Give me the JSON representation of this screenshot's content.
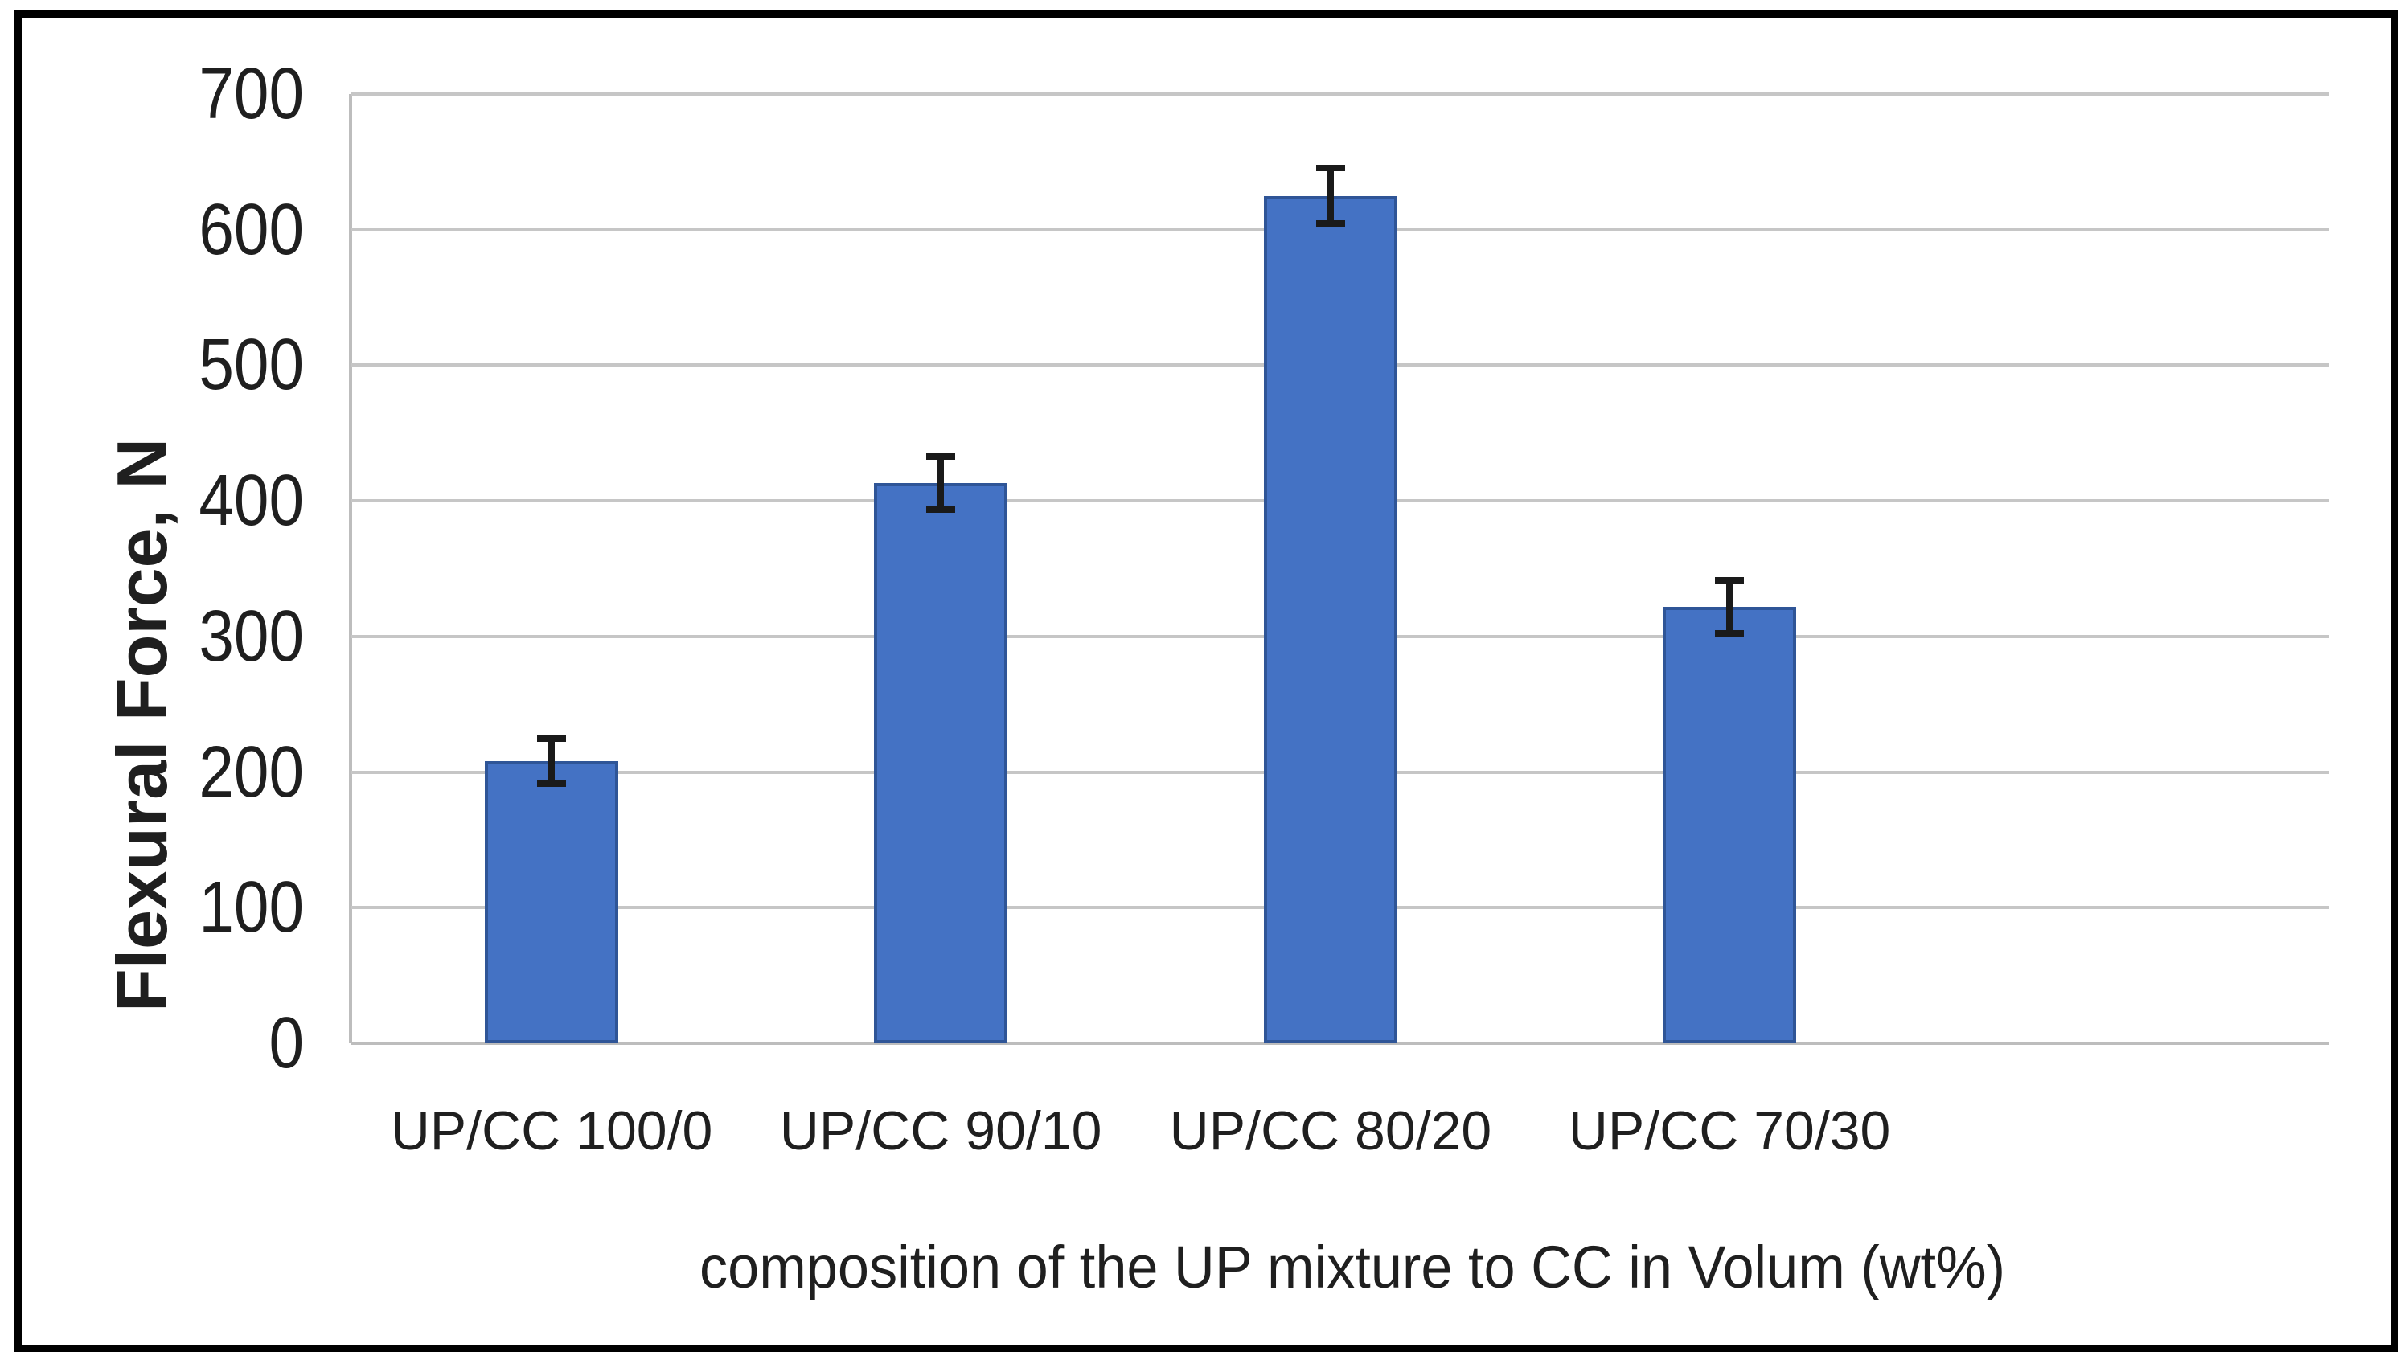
{
  "chart_data": {
    "type": "bar",
    "title": "",
    "categories": [
      "UP/CC 100/0",
      "UP/CC 90/10",
      "UP/CC 80/20",
      "UP/CC 70/30"
    ],
    "values": [
      208,
      413,
      625,
      322
    ],
    "error_bars_plus_minus": [
      19,
      22,
      23,
      22
    ],
    "xlabel": "composition of the UP mixture to CC in Volum (wt%)",
    "ylabel": "Flexural Force, N",
    "ylim": [
      0,
      700
    ],
    "yticks": [
      0,
      100,
      200,
      300,
      400,
      500,
      600,
      700
    ],
    "grid": "horizontal-only",
    "legend": "none",
    "colors": {
      "bar_fill": "#4472C4",
      "bar_border": "#2F5597",
      "error_bar": "#1a1a1a",
      "gridline": "#C6C6C6",
      "axis_line": "#BDBDBD",
      "outer_frame": "#000000",
      "text": "#1f1f1f",
      "background": "#ffffff"
    }
  }
}
